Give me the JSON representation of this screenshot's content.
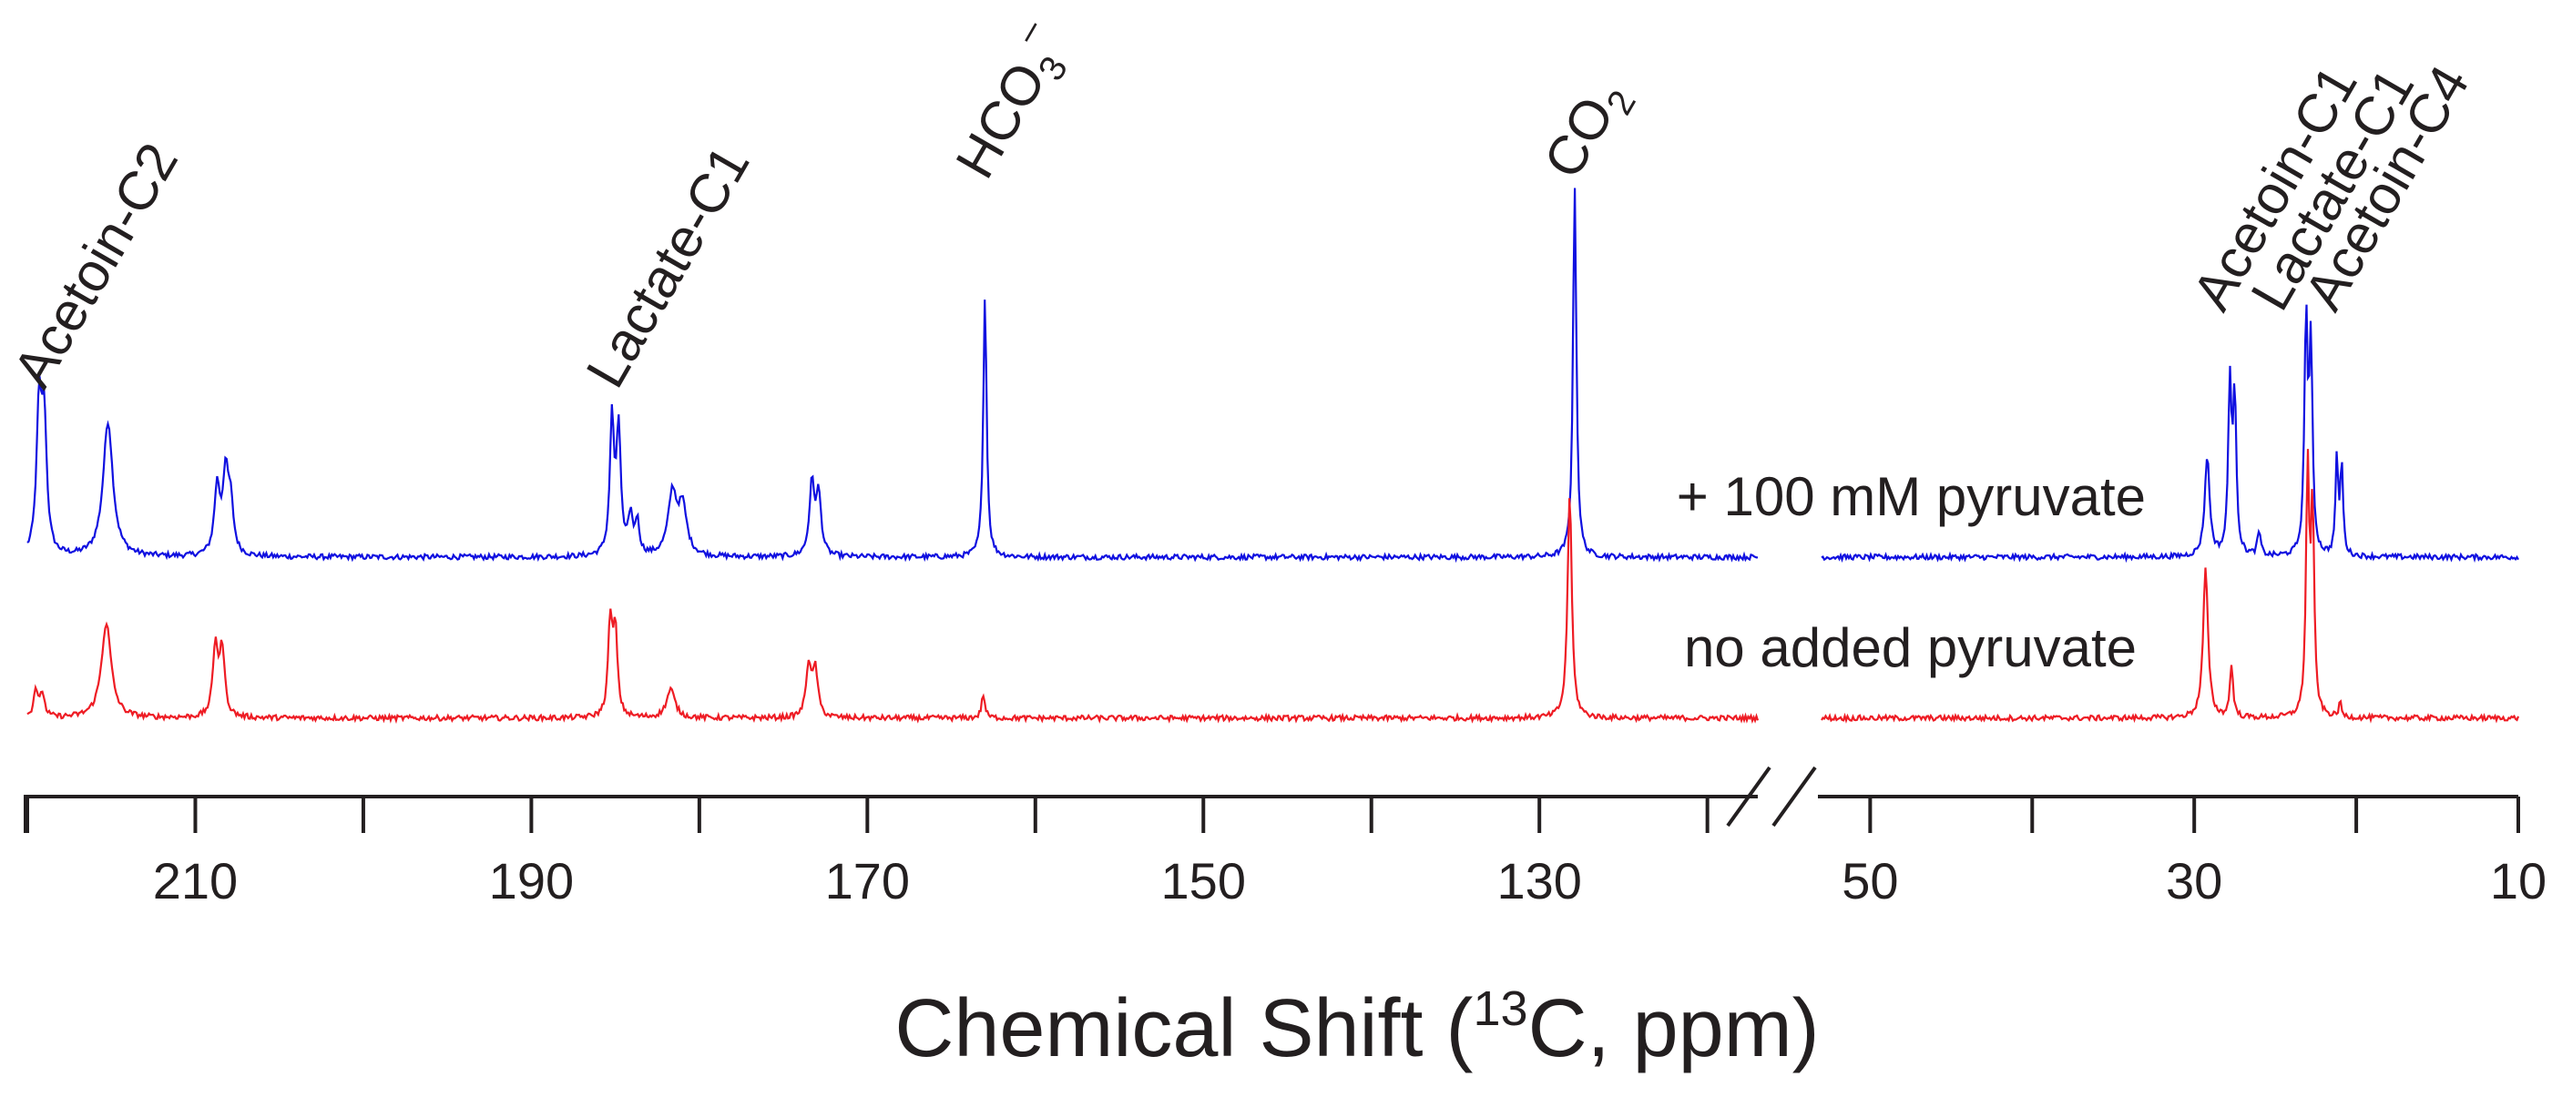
{
  "chart_data": {
    "type": "line",
    "title": "",
    "xlabel": {
      "prefix": "Chemical Shift (",
      "superscript": "13",
      "suffix": "C, ppm)"
    },
    "x_axis": {
      "reversed": true,
      "broken": true,
      "segments": [
        {
          "name": "left",
          "xlim": [
            220,
            117
          ],
          "ticks": [
            210,
            190,
            170,
            150,
            130
          ]
        },
        {
          "name": "right",
          "xlim": [
            53,
            10
          ],
          "ticks": [
            50,
            30,
            10
          ]
        }
      ]
    },
    "series": [
      {
        "name": "+ 100 mM pyruvate",
        "color": "#1010e0",
        "baseline": 0,
        "peaks": [
          {
            "ppm": 219.3,
            "height": 0.6,
            "width": 0.18
          },
          {
            "ppm": 219.0,
            "height": 0.55,
            "width": 0.18
          },
          {
            "ppm": 215.2,
            "height": 0.57,
            "width": 0.35
          },
          {
            "ppm": 208.7,
            "height": 0.28,
            "width": 0.2
          },
          {
            "ppm": 208.2,
            "height": 0.32,
            "width": 0.2
          },
          {
            "ppm": 207.9,
            "height": 0.2,
            "width": 0.2
          },
          {
            "ppm": 185.2,
            "height": 0.57,
            "width": 0.15
          },
          {
            "ppm": 184.8,
            "height": 0.52,
            "width": 0.15
          },
          {
            "ppm": 184.1,
            "height": 0.16,
            "width": 0.15
          },
          {
            "ppm": 183.7,
            "height": 0.14,
            "width": 0.15
          },
          {
            "ppm": 181.6,
            "height": 0.26,
            "width": 0.3
          },
          {
            "ppm": 181.0,
            "height": 0.2,
            "width": 0.3
          },
          {
            "ppm": 173.3,
            "height": 0.3,
            "width": 0.18
          },
          {
            "ppm": 172.9,
            "height": 0.25,
            "width": 0.18
          },
          {
            "ppm": 163.0,
            "height": 1.1,
            "width": 0.12
          },
          {
            "ppm": 127.9,
            "height": 1.57,
            "width": 0.12
          },
          {
            "ppm": 29.2,
            "height": 0.42,
            "width": 0.18
          },
          {
            "ppm": 27.8,
            "height": 0.72,
            "width": 0.12
          },
          {
            "ppm": 27.5,
            "height": 0.65,
            "width": 0.12
          },
          {
            "ppm": 26.0,
            "height": 0.1,
            "width": 0.12
          },
          {
            "ppm": 23.1,
            "height": 0.98,
            "width": 0.12
          },
          {
            "ppm": 22.8,
            "height": 0.85,
            "width": 0.12
          },
          {
            "ppm": 21.2,
            "height": 0.4,
            "width": 0.1
          },
          {
            "ppm": 20.9,
            "height": 0.38,
            "width": 0.1
          }
        ]
      },
      {
        "name": "no added pyruvate",
        "color": "#ee1c24",
        "baseline": -0.68,
        "peaks": [
          {
            "ppm": 219.5,
            "height": 0.12,
            "width": 0.15
          },
          {
            "ppm": 219.1,
            "height": 0.1,
            "width": 0.15
          },
          {
            "ppm": 215.3,
            "height": 0.4,
            "width": 0.35
          },
          {
            "ppm": 208.8,
            "height": 0.3,
            "width": 0.18
          },
          {
            "ppm": 208.4,
            "height": 0.28,
            "width": 0.18
          },
          {
            "ppm": 185.3,
            "height": 0.4,
            "width": 0.15
          },
          {
            "ppm": 185.0,
            "height": 0.35,
            "width": 0.15
          },
          {
            "ppm": 181.7,
            "height": 0.12,
            "width": 0.3
          },
          {
            "ppm": 173.5,
            "height": 0.22,
            "width": 0.18
          },
          {
            "ppm": 173.1,
            "height": 0.2,
            "width": 0.18
          },
          {
            "ppm": 163.1,
            "height": 0.1,
            "width": 0.12
          },
          {
            "ppm": 128.2,
            "height": 0.95,
            "width": 0.15
          },
          {
            "ppm": 29.3,
            "height": 0.63,
            "width": 0.18
          },
          {
            "ppm": 27.7,
            "height": 0.22,
            "width": 0.12
          },
          {
            "ppm": 23.0,
            "height": 1.02,
            "width": 0.12
          },
          {
            "ppm": 22.7,
            "height": 0.85,
            "width": 0.12
          },
          {
            "ppm": 21.0,
            "height": 0.06,
            "width": 0.1
          }
        ]
      }
    ],
    "peak_labels": [
      {
        "text": "Acetoin-C2",
        "ppm": 219.0
      },
      {
        "text": "Lactate-C1",
        "ppm": 184.9
      },
      {
        "text": "HCO",
        "sub": "3",
        "sup": "–",
        "ppm": 162.9
      },
      {
        "text": "CO",
        "sub": "2",
        "ppm": 127.9
      },
      {
        "text": "Acetoin-C1",
        "ppm": 28.2
      },
      {
        "text": "Lactate-C1",
        "ppm": 24.6
      },
      {
        "text": "Acetoin-C4",
        "ppm": 21.3
      }
    ],
    "legend": [
      {
        "text": "+ 100 mM pyruvate",
        "color": "#1010e0"
      },
      {
        "text": "no added pyruvate",
        "color": "#ee1c24"
      }
    ],
    "axis_color": "#231f20"
  }
}
